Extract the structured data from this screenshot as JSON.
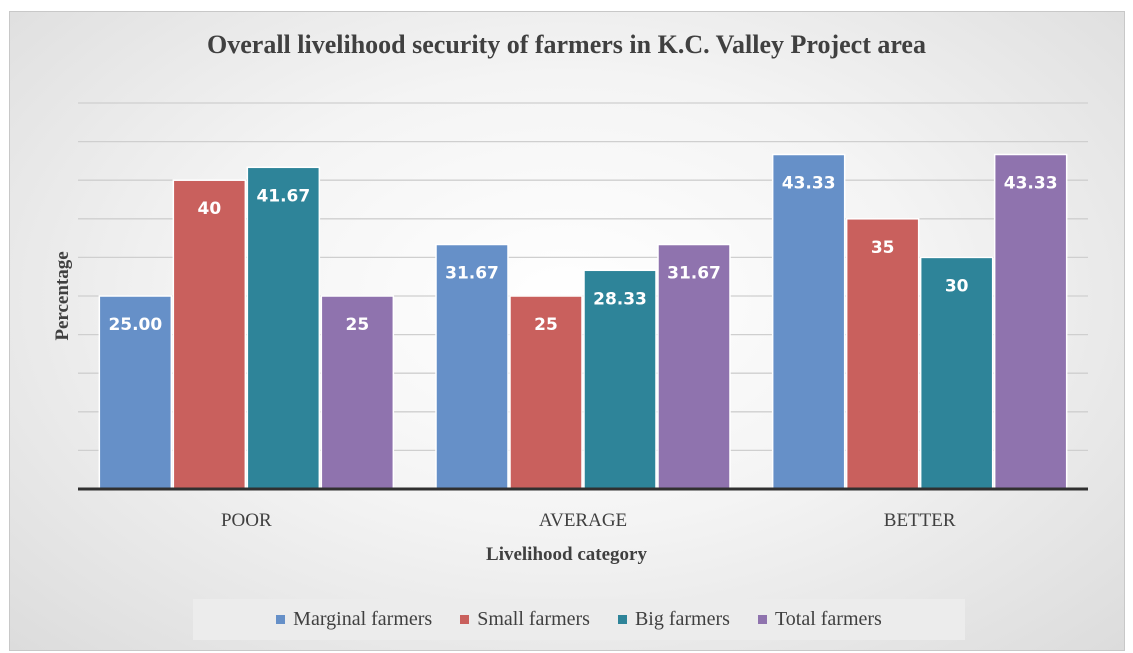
{
  "chart_data": {
    "type": "bar",
    "title": "Overall livelihood security of farmers in K.C. Valley Project area",
    "xlabel": "Livelihood category",
    "ylabel": "Percentage",
    "categories": [
      "POOR",
      "AVERAGE",
      "BETTER"
    ],
    "series": [
      {
        "name": "Marginal farmers",
        "color": "#6690C8",
        "values": [
          25.0,
          31.67,
          43.33
        ],
        "labels": [
          "25.00",
          "31.67",
          "43.33"
        ]
      },
      {
        "name": "Small farmers",
        "color": "#C9605D",
        "values": [
          40,
          25,
          35
        ],
        "labels": [
          "40",
          "25",
          "35"
        ]
      },
      {
        "name": "Big farmers",
        "color": "#2E8499",
        "values": [
          41.67,
          28.33,
          30
        ],
        "labels": [
          "41.67",
          "28.33",
          "30"
        ]
      },
      {
        "name": "Total farmers",
        "color": "#8F73AE",
        "values": [
          25,
          31.67,
          43.33
        ],
        "labels": [
          "25",
          "31.67",
          "43.33"
        ]
      }
    ],
    "ylim": [
      0,
      50
    ],
    "grid": true,
    "legend_position": "bottom"
  }
}
